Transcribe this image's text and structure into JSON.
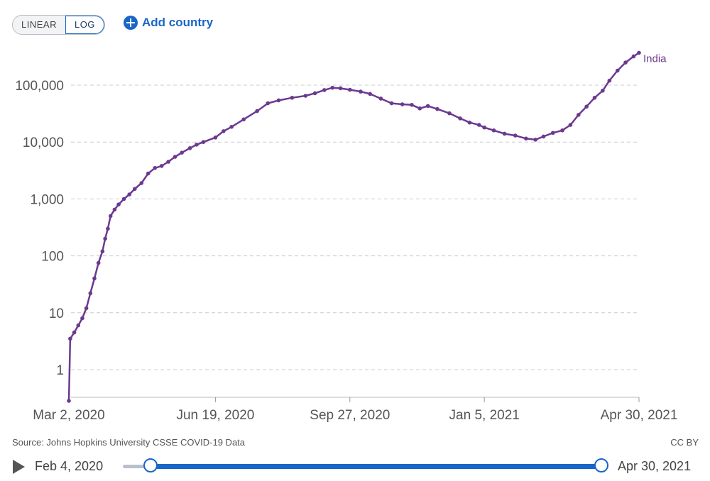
{
  "controls": {
    "scale_linear_label": "LINEAR",
    "scale_log_label": "LOG",
    "active_scale": "LOG",
    "add_country_label": "Add country"
  },
  "footer": {
    "source_text": "Source: Johns Hopkins University CSSE COVID-19 Data",
    "license_text": "CC BY"
  },
  "timeline": {
    "start_date": "Feb 4, 2020",
    "end_date": "Apr 30, 2021",
    "range_start_fraction": 0.0,
    "range_end_fraction": 1.0
  },
  "colors": {
    "series": "#6b3a8f",
    "accent": "#1a66c8",
    "grid": "#cccccc"
  },
  "chart_data": {
    "type": "line",
    "scale": "log",
    "yticks": [
      1,
      10,
      100,
      1000,
      10000,
      100000
    ],
    "ytick_labels": [
      "1",
      "10",
      "100",
      "1,000",
      "10,000",
      "100,000"
    ],
    "xticks": [
      "2020-03-02",
      "2020-06-19",
      "2020-09-27",
      "2021-01-05",
      "2021-04-30"
    ],
    "xtick_labels": [
      "Mar 2, 2020",
      "Jun 19, 2020",
      "Sep 27, 2020",
      "Jan 5, 2021",
      "Apr 30, 2021"
    ],
    "xlim": [
      "2020-03-02",
      "2021-04-30"
    ],
    "grid": true,
    "series": [
      {
        "name": "India",
        "points": [
          [
            "2020-03-02",
            0.3
          ],
          [
            "2020-03-03",
            3.5
          ],
          [
            "2020-03-06",
            4.5
          ],
          [
            "2020-03-09",
            6
          ],
          [
            "2020-03-12",
            8
          ],
          [
            "2020-03-15",
            12
          ],
          [
            "2020-03-18",
            22
          ],
          [
            "2020-03-21",
            40
          ],
          [
            "2020-03-24",
            75
          ],
          [
            "2020-03-27",
            120
          ],
          [
            "2020-03-29",
            200
          ],
          [
            "2020-03-31",
            300
          ],
          [
            "2020-04-02",
            500
          ],
          [
            "2020-04-05",
            650
          ],
          [
            "2020-04-08",
            800
          ],
          [
            "2020-04-12",
            1000
          ],
          [
            "2020-04-16",
            1200
          ],
          [
            "2020-04-20",
            1500
          ],
          [
            "2020-04-25",
            1900
          ],
          [
            "2020-04-30",
            2800
          ],
          [
            "2020-05-05",
            3500
          ],
          [
            "2020-05-10",
            3800
          ],
          [
            "2020-05-15",
            4500
          ],
          [
            "2020-05-20",
            5500
          ],
          [
            "2020-05-25",
            6500
          ],
          [
            "2020-05-31",
            7800
          ],
          [
            "2020-06-05",
            9000
          ],
          [
            "2020-06-10",
            10000
          ],
          [
            "2020-06-19",
            12000
          ],
          [
            "2020-06-25",
            15500
          ],
          [
            "2020-07-01",
            18500
          ],
          [
            "2020-07-10",
            25000
          ],
          [
            "2020-07-20",
            35000
          ],
          [
            "2020-07-28",
            48000
          ],
          [
            "2020-08-05",
            54000
          ],
          [
            "2020-08-15",
            60000
          ],
          [
            "2020-08-25",
            65000
          ],
          [
            "2020-09-01",
            72000
          ],
          [
            "2020-09-08",
            82000
          ],
          [
            "2020-09-14",
            90000
          ],
          [
            "2020-09-20",
            88000
          ],
          [
            "2020-09-27",
            83000
          ],
          [
            "2020-10-05",
            77000
          ],
          [
            "2020-10-12",
            70000
          ],
          [
            "2020-10-20",
            58000
          ],
          [
            "2020-10-28",
            48000
          ],
          [
            "2020-11-05",
            46000
          ],
          [
            "2020-11-12",
            45000
          ],
          [
            "2020-11-18",
            39000
          ],
          [
            "2020-11-24",
            43000
          ],
          [
            "2020-12-01",
            38000
          ],
          [
            "2020-12-10",
            32000
          ],
          [
            "2020-12-18",
            26000
          ],
          [
            "2020-12-25",
            22000
          ],
          [
            "2021-01-01",
            20000
          ],
          [
            "2021-01-05",
            18000
          ],
          [
            "2021-01-12",
            16000
          ],
          [
            "2021-01-20",
            14000
          ],
          [
            "2021-01-28",
            13000
          ],
          [
            "2021-02-05",
            11500
          ],
          [
            "2021-02-12",
            11000
          ],
          [
            "2021-02-18",
            12500
          ],
          [
            "2021-02-25",
            14500
          ],
          [
            "2021-03-04",
            16000
          ],
          [
            "2021-03-10",
            20000
          ],
          [
            "2021-03-16",
            30000
          ],
          [
            "2021-03-22",
            42000
          ],
          [
            "2021-03-28",
            60000
          ],
          [
            "2021-04-03",
            80000
          ],
          [
            "2021-04-08",
            120000
          ],
          [
            "2021-04-14",
            180000
          ],
          [
            "2021-04-20",
            250000
          ],
          [
            "2021-04-26",
            320000
          ],
          [
            "2021-04-30",
            370000
          ]
        ]
      }
    ]
  }
}
